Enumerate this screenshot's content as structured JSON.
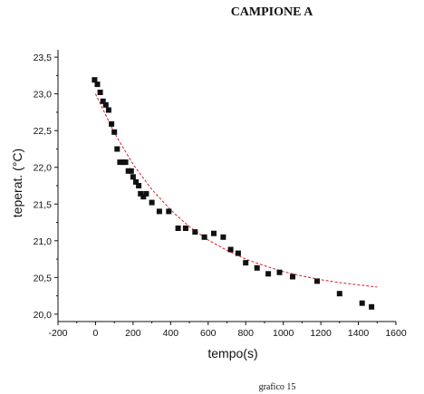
{
  "chart_data": {
    "type": "scatter",
    "title": "CAMPIONE A",
    "caption": "grafico 15",
    "xlabel": "tempo(s)",
    "ylabel": "teperat. (°C)",
    "xlim": [
      -200,
      1600
    ],
    "ylim": [
      19.9,
      23.6
    ],
    "x_ticks": [
      -200,
      0,
      200,
      400,
      600,
      800,
      1000,
      1200,
      1400,
      1600
    ],
    "y_ticks": [
      "20,0",
      "20,5",
      "21,0",
      "21,5",
      "22,0",
      "22,5",
      "23,0",
      "23,5"
    ],
    "grid": false,
    "series": [
      {
        "marker": "square",
        "color": "#111111",
        "x": [
          -5,
          10,
          25,
          40,
          55,
          70,
          85,
          100,
          115,
          130,
          145,
          160,
          175,
          190,
          200,
          215,
          230,
          240,
          255,
          270,
          300,
          340,
          390,
          440,
          480,
          530,
          580,
          630,
          680,
          720,
          760,
          800,
          860,
          920,
          980,
          1050,
          1180,
          1300,
          1420,
          1470
        ],
        "y": [
          23.19,
          23.13,
          23.02,
          22.9,
          22.85,
          22.78,
          22.59,
          22.48,
          22.25,
          22.07,
          22.07,
          22.07,
          21.95,
          21.95,
          21.87,
          21.8,
          21.75,
          21.64,
          21.6,
          21.64,
          21.52,
          21.4,
          21.4,
          21.17,
          21.17,
          21.12,
          21.05,
          21.1,
          21.05,
          20.88,
          20.83,
          20.7,
          20.63,
          20.55,
          20.57,
          20.51,
          20.45,
          20.28,
          20.15,
          20.1
        ]
      },
      {
        "line": "dashed",
        "color": "#d2232a",
        "x": [
          0,
          100,
          200,
          300,
          400,
          500,
          600,
          700,
          800,
          900,
          1000,
          1100,
          1200,
          1300,
          1400,
          1500
        ],
        "y": [
          23.0,
          22.47,
          22.04,
          21.7,
          21.42,
          21.19,
          21.01,
          20.87,
          20.75,
          20.66,
          20.58,
          20.52,
          20.47,
          20.43,
          20.4,
          20.37
        ]
      }
    ]
  }
}
